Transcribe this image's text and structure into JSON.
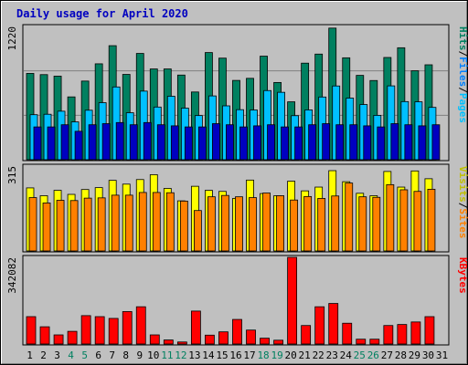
{
  "chart_data": {
    "type": "bar",
    "title": "Daily usage for April 2020",
    "days": [
      "1",
      "2",
      "3",
      "4",
      "5",
      "6",
      "7",
      "8",
      "9",
      "10",
      "11",
      "12",
      "13",
      "14",
      "15",
      "16",
      "17",
      "18",
      "19",
      "20",
      "21",
      "22",
      "23",
      "24",
      "25",
      "26",
      "27",
      "28",
      "29",
      "30",
      "31"
    ],
    "weekend_days": [
      "4",
      "5",
      "11",
      "12",
      "18",
      "19",
      "25",
      "26"
    ],
    "colors": {
      "hits": "#008060",
      "files": "#00c0ff",
      "pages": "#00c0ff",
      "visits": "#ffff00",
      "sites": "#ff8000",
      "kbytes": "#ff0000",
      "title": "#0000c0",
      "weekday_label": "#000000",
      "weekend_label": "#008060",
      "panel_bg": "#c0c0c0"
    },
    "panels": [
      {
        "id": "hits-panel",
        "max_label": "1220",
        "max": 1220,
        "legend": [
          {
            "text": "Hits",
            "color": "#008060"
          },
          {
            "text": "/",
            "color": "#000000"
          },
          {
            "text": "Files",
            "color": "#0080ff"
          },
          {
            "text": "/",
            "color": "#000000"
          },
          {
            "text": "Pages",
            "color": "#00c0ff"
          }
        ],
        "series": [
          {
            "name": "Hits",
            "color": "#008060",
            "values": [
              790,
              779,
              765,
              575,
              720,
              878,
              1044,
              781,
              973,
              831,
              831,
              775,
              620,
              981,
              930,
              726,
              745,
              948,
              707,
              530,
              884,
              967,
              1205,
              933,
              772,
              725,
              936,
              1025,
              814,
              869,
              null
            ]
          },
          {
            "name": "Files",
            "color": "#00c0ff",
            "values": [
              412,
              416,
              444,
              346,
              453,
              522,
              666,
              430,
              628,
              482,
              581,
              472,
              404,
              584,
              493,
              458,
              455,
              633,
              617,
              403,
              456,
              574,
              675,
              564,
              505,
              406,
              676,
              532,
              530,
              479,
              null
            ]
          },
          {
            "name": "Pages",
            "color": "#0000c0",
            "values": [
              300,
              300,
              320,
              260,
              320,
              330,
              340,
              320,
              340,
              320,
              310,
              300,
              300,
              330,
              320,
              300,
              310,
              320,
              300,
              300,
              320,
              330,
              320,
              320,
              310,
              300,
              330,
              320,
              310,
              320,
              null
            ]
          }
        ]
      },
      {
        "id": "visits-panel",
        "max_label": "315",
        "max": 315,
        "legend": [
          {
            "text": "Visits",
            "color": "#c0c000"
          },
          {
            "text": "/",
            "color": "#000000"
          },
          {
            "text": "Sites",
            "color": "#ff8000"
          }
        ],
        "series": [
          {
            "name": "Visits",
            "color": "#ffff00",
            "values": [
              234,
              205,
              225,
              210,
              228,
              235,
              262,
              248,
              265,
              283,
              232,
              186,
              240,
              225,
              221,
              195,
              263,
              213,
              205,
              259,
              223,
              237,
              298,
              257,
              214,
              205,
              295,
              237,
              297,
              268,
              null
            ]
          },
          {
            "name": "Sites",
            "color": "#ff8000",
            "values": [
              198,
              178,
              188,
              187,
              196,
              197,
              207,
              207,
              217,
              217,
              216,
              185,
              150,
              201,
              206,
              201,
              198,
              215,
              205,
              189,
              202,
              195,
              204,
              252,
              201,
              199,
              246,
              227,
              221,
              229,
              null
            ]
          }
        ]
      },
      {
        "id": "kbytes-panel",
        "max_label": "342082",
        "max": 342082,
        "legend": [
          {
            "text": "KBytes",
            "color": "#ff0000"
          }
        ],
        "series": [
          {
            "name": "KBytes",
            "color": "#ff0000",
            "values": [
              108000,
              68000,
              36000,
              50000,
              112000,
              108000,
              101000,
              128000,
              147000,
              36000,
              16000,
              8000,
              130000,
              35000,
              48000,
              97000,
              55000,
              23000,
              15000,
              342000,
              73000,
              147000,
              160000,
              82000,
              19000,
              19000,
              73000,
              77000,
              87000,
              108000,
              null
            ]
          }
        ]
      }
    ]
  }
}
